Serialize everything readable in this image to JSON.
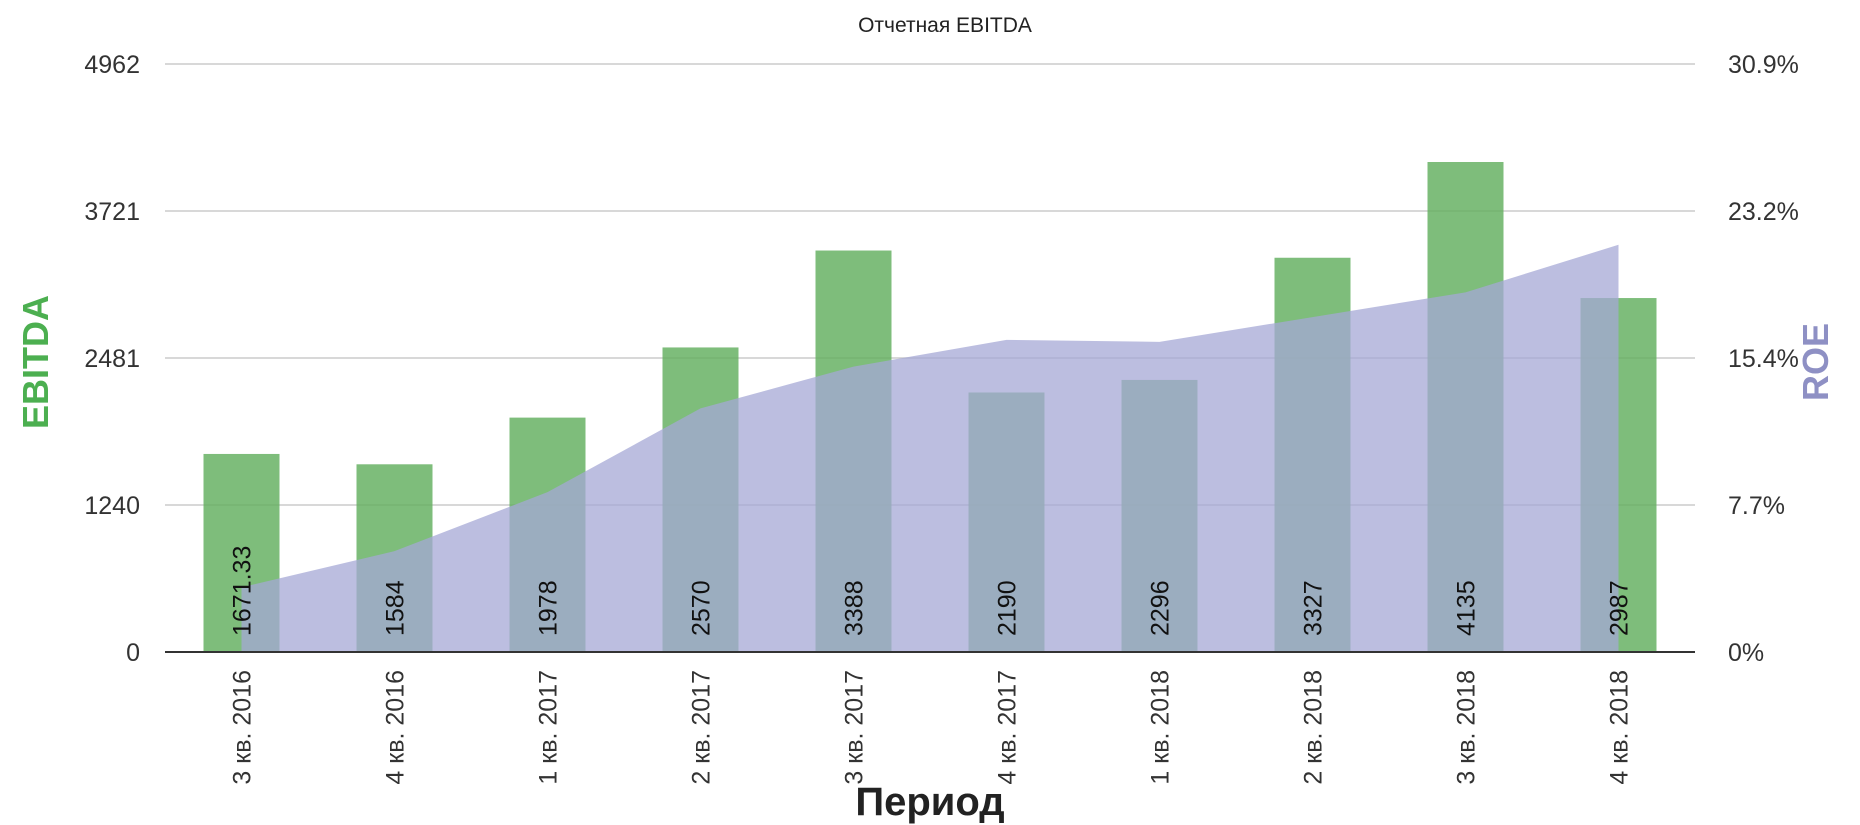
{
  "chart_data": {
    "type": "bar",
    "title": "Отчетная EBITDA",
    "xlabel": "Период",
    "ylabel": "EBITDA",
    "y2label": "ROE",
    "categories": [
      "3 кв. 2016",
      "4 кв. 2016",
      "1 кв. 2017",
      "2 кв. 2017",
      "3 кв. 2017",
      "4 кв. 2017",
      "1 кв. 2018",
      "2 кв. 2018",
      "3 кв. 2018",
      "4 кв. 2018"
    ],
    "bar_labels": [
      "1671.33",
      "1584",
      "1978",
      "2570",
      "3388",
      "2190",
      "2296",
      "3327",
      "4135",
      "2987"
    ],
    "series": [
      {
        "type": "bar",
        "axis": "left",
        "color": "#62ae5e",
        "values": [
          1671.33,
          1584,
          1978,
          2570,
          3388,
          2190,
          2296,
          3327,
          4135,
          2987
        ]
      },
      {
        "type": "area",
        "axis": "right",
        "color": "#a6a8d6",
        "values": [
          3.4,
          5.3,
          8.4,
          12.8,
          15.0,
          16.4,
          16.3,
          17.6,
          18.9,
          21.4
        ]
      }
    ],
    "ylim": [
      0,
      4962
    ],
    "y_ticks": [
      "0",
      "1240",
      "2481",
      "3721",
      "4962"
    ],
    "y2lim": [
      0,
      30.9
    ],
    "y2_ticks": [
      "0%",
      "7.7%",
      "15.4%",
      "23.2%",
      "30.9%"
    ],
    "grid": true,
    "colors": {
      "ylabel": "#4caf50",
      "y2label": "#8e90c4"
    }
  }
}
